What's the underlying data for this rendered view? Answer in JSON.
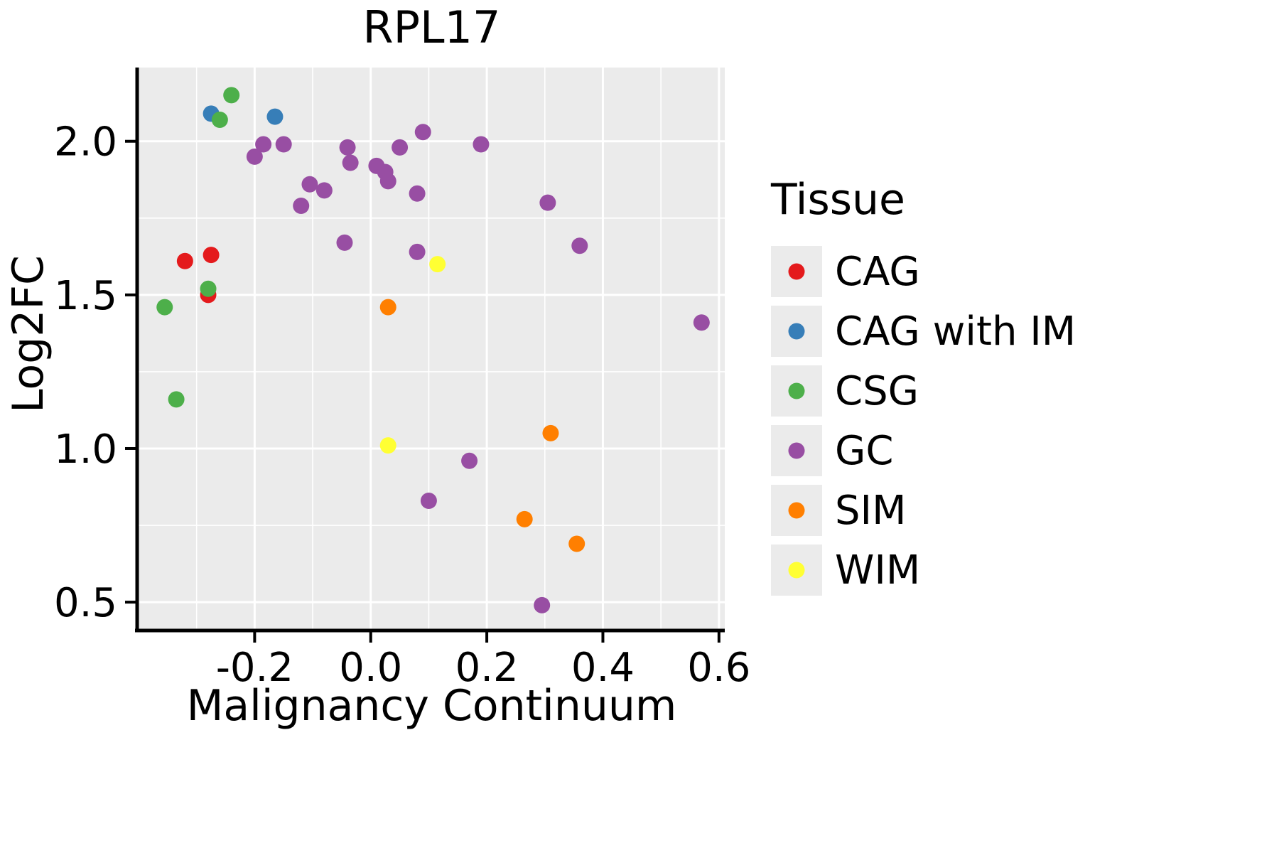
{
  "title": "RPL17",
  "chart_data": {
    "type": "scatter",
    "title": "RPL17",
    "xlabel": "Malignancy Continuum",
    "ylabel": "Log2FC",
    "legend_title": "Tissue",
    "xlim": [
      -0.4,
      0.61
    ],
    "ylim": [
      0.41,
      2.24
    ],
    "x_ticks": [
      -0.2,
      0.0,
      0.2,
      0.4,
      0.6
    ],
    "x_tick_labels": [
      "-0.2",
      "0.0",
      "0.2",
      "0.4",
      "0.6"
    ],
    "y_ticks": [
      0.5,
      1.0,
      1.5,
      2.0
    ],
    "y_tick_labels": [
      "0.5",
      "1.0",
      "1.5",
      "2.0"
    ],
    "x_minor_ticks": [
      -0.3,
      -0.1,
      0.1,
      0.3,
      0.5
    ],
    "y_minor_ticks": [
      0.75,
      1.25,
      1.75
    ],
    "grid": true,
    "panel_bg": "#EBEBEB",
    "grid_color": "#FFFFFF",
    "axis_color": "#000000",
    "legend_position": "right",
    "series": [
      {
        "name": "CAG",
        "color": "#E41A1C",
        "points": [
          [
            -0.32,
            1.61
          ],
          [
            -0.275,
            1.63
          ],
          [
            -0.28,
            1.5
          ]
        ]
      },
      {
        "name": "CAG with IM",
        "color": "#377EB8",
        "points": [
          [
            -0.275,
            2.09
          ],
          [
            -0.165,
            2.08
          ]
        ]
      },
      {
        "name": "CSG",
        "color": "#4DAF4A",
        "points": [
          [
            -0.24,
            2.15
          ],
          [
            -0.26,
            2.07
          ],
          [
            -0.355,
            1.46
          ],
          [
            -0.28,
            1.52
          ],
          [
            -0.335,
            1.16
          ]
        ]
      },
      {
        "name": "GC",
        "color": "#984EA3",
        "points": [
          [
            -0.2,
            1.95
          ],
          [
            -0.185,
            1.99
          ],
          [
            -0.15,
            1.99
          ],
          [
            -0.12,
            1.79
          ],
          [
            -0.105,
            1.86
          ],
          [
            -0.08,
            1.84
          ],
          [
            -0.04,
            1.98
          ],
          [
            -0.035,
            1.93
          ],
          [
            -0.045,
            1.67
          ],
          [
            0.01,
            1.92
          ],
          [
            0.025,
            1.9
          ],
          [
            0.03,
            1.87
          ],
          [
            0.05,
            1.98
          ],
          [
            0.08,
            1.83
          ],
          [
            0.09,
            2.03
          ],
          [
            0.08,
            1.64
          ],
          [
            0.19,
            1.99
          ],
          [
            0.305,
            1.8
          ],
          [
            0.36,
            1.66
          ],
          [
            0.57,
            1.41
          ],
          [
            0.17,
            0.96
          ],
          [
            0.1,
            0.83
          ],
          [
            0.295,
            0.49
          ]
        ]
      },
      {
        "name": "SIM",
        "color": "#FF7F00",
        "points": [
          [
            0.03,
            1.46
          ],
          [
            0.31,
            1.05
          ],
          [
            0.265,
            0.77
          ],
          [
            0.355,
            0.69
          ]
        ]
      },
      {
        "name": "WIM",
        "color": "#FFFF33",
        "points": [
          [
            0.115,
            1.6
          ],
          [
            0.03,
            1.01
          ]
        ]
      }
    ]
  }
}
